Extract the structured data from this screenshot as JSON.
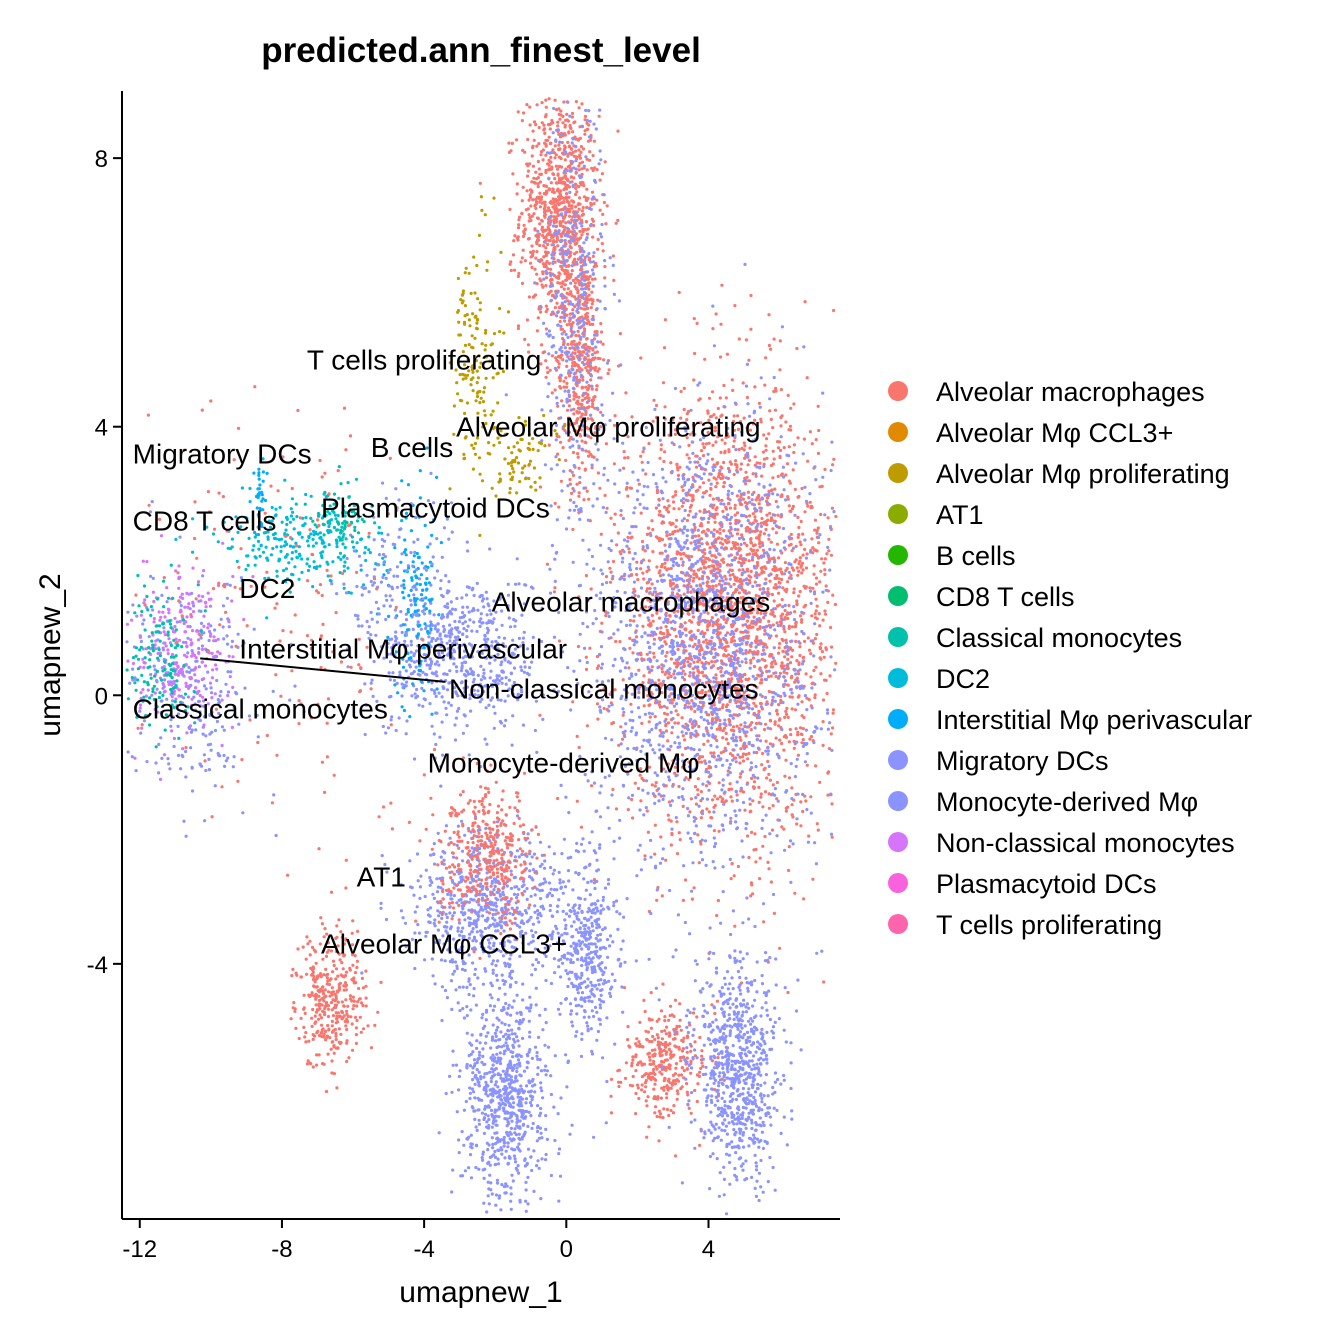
{
  "chart_data": {
    "type": "scatter",
    "title": "predicted.ann_finest_level",
    "xlabel": "umapnew_1",
    "ylabel": "umapnew_2",
    "xlim": [
      -12.5,
      7.7
    ],
    "ylim": [
      -7.8,
      9.0
    ],
    "xticks": [
      -12,
      -8,
      -4,
      0,
      4
    ],
    "yticks": [
      -4,
      0,
      4,
      8
    ],
    "xtick_labels": [
      "-12",
      "-8",
      "-4",
      "0",
      "4"
    ],
    "ytick_labels": [
      "-4",
      "0",
      "4",
      "8"
    ],
    "legend_position": "right",
    "grid": false,
    "legend": [
      {
        "name": "Alveolar macrophages",
        "color": "#F8766D"
      },
      {
        "name": "Alveolar Mφ CCL3+",
        "color": "#E18A00"
      },
      {
        "name": "Alveolar Mφ proliferating",
        "color": "#BE9C00"
      },
      {
        "name": "AT1",
        "color": "#8CAB00"
      },
      {
        "name": "B cells",
        "color": "#24B700"
      },
      {
        "name": "CD8 T cells",
        "color": "#00BE70"
      },
      {
        "name": "Classical monocytes",
        "color": "#00C1AB"
      },
      {
        "name": "DC2",
        "color": "#00BBDA"
      },
      {
        "name": "Interstitial Mφ perivascular",
        "color": "#00ACFC"
      },
      {
        "name": "Migratory DCs",
        "color": "#8B93FF"
      },
      {
        "name": "Monocyte-derived Mφ",
        "color": "#8B93FF"
      },
      {
        "name": "Non-classical monocytes",
        "color": "#D575FE"
      },
      {
        "name": "Plasmacytoid DCs",
        "color": "#F962DD"
      },
      {
        "name": "T cells proliferating",
        "color": "#FF65AC"
      }
    ],
    "cluster_labels": [
      {
        "text": "T cells proliferating",
        "x": -7.3,
        "y": 5.0
      },
      {
        "text": "Alveolar Mφ proliferating",
        "x": -3.1,
        "y": 4.0
      },
      {
        "text": "Migratory DCs",
        "x": -12.2,
        "y": 3.6
      },
      {
        "text": "B cells",
        "x": -5.5,
        "y": 3.7
      },
      {
        "text": "Plasmacytoid DCs",
        "x": -6.9,
        "y": 2.8
      },
      {
        "text": "CD8 T cells",
        "x": -12.2,
        "y": 2.6
      },
      {
        "text": "DC2",
        "x": -9.2,
        "y": 1.6
      },
      {
        "text": "Alveolar macrophages",
        "x": -2.1,
        "y": 1.4
      },
      {
        "text": "Interstitial Mφ perivascular",
        "x": -9.2,
        "y": 0.7
      },
      {
        "text": "Non-classical monocytes",
        "x": -3.3,
        "y": 0.1
      },
      {
        "text": "Classical monocytes",
        "x": -12.2,
        "y": -0.2
      },
      {
        "text": "Monocyte-derived Mφ",
        "x": -3.9,
        "y": -1.0
      },
      {
        "text": "AT1",
        "x": -5.9,
        "y": -2.7
      },
      {
        "text": "Alveolar Mφ CCL3+",
        "x": -6.9,
        "y": -3.7
      }
    ],
    "connector_line": {
      "from": [
        -10.3,
        0.55
      ],
      "to": [
        -3.4,
        0.2
      ]
    },
    "clusters": [
      {
        "color": "#F8766D",
        "cx": -0.2,
        "cy": 7.2,
        "sx": 0.55,
        "sy": 0.9,
        "n": 900
      },
      {
        "color": "#F8766D",
        "cx": 0.4,
        "cy": 5.0,
        "sx": 0.35,
        "sy": 0.9,
        "n": 450
      },
      {
        "color": "#8B93FF",
        "cx": 0.2,
        "cy": 6.0,
        "sx": 0.45,
        "sy": 1.5,
        "n": 350
      },
      {
        "color": "#F8766D",
        "cx": 4.6,
        "cy": 1.2,
        "sx": 1.6,
        "sy": 1.6,
        "n": 2600
      },
      {
        "color": "#8B93FF",
        "cx": 3.8,
        "cy": 0.8,
        "sx": 1.7,
        "sy": 1.7,
        "n": 1500
      },
      {
        "color": "#8B93FF",
        "cx": -2.8,
        "cy": 0.6,
        "sx": 1.0,
        "sy": 0.6,
        "n": 500
      },
      {
        "color": "#8B93FF",
        "cx": -10.6,
        "cy": 0.2,
        "sx": 0.9,
        "sy": 0.8,
        "n": 280
      },
      {
        "color": "#D575FE",
        "cx": -10.8,
        "cy": 0.6,
        "sx": 0.7,
        "sy": 0.6,
        "n": 260
      },
      {
        "color": "#00C1AB",
        "cx": -11.4,
        "cy": 0.6,
        "sx": 0.4,
        "sy": 0.6,
        "n": 130
      },
      {
        "color": "#00BBDA",
        "cx": -7.4,
        "cy": 2.3,
        "sx": 1.1,
        "sy": 0.35,
        "n": 260
      },
      {
        "color": "#00ACFC",
        "cx": -4.2,
        "cy": 1.5,
        "sx": 0.35,
        "sy": 0.8,
        "n": 130
      },
      {
        "color": "#8B93FF",
        "cx": -4.6,
        "cy": 1.2,
        "sx": 0.9,
        "sy": 0.9,
        "n": 220
      },
      {
        "color": "#8B93FF",
        "cx": -2.2,
        "cy": -3.2,
        "sx": 1.1,
        "sy": 0.6,
        "n": 700
      },
      {
        "color": "#F8766D",
        "cx": -2.2,
        "cy": -2.4,
        "sx": 0.7,
        "sy": 0.5,
        "n": 380
      },
      {
        "color": "#F8766D",
        "cx": -6.6,
        "cy": -4.5,
        "sx": 0.5,
        "sy": 0.5,
        "n": 350
      },
      {
        "color": "#8B93FF",
        "cx": -1.7,
        "cy": -6.0,
        "sx": 0.6,
        "sy": 0.8,
        "n": 750
      },
      {
        "color": "#8B93FF",
        "cx": 0.6,
        "cy": -3.8,
        "sx": 0.4,
        "sy": 0.7,
        "n": 380
      },
      {
        "color": "#F8766D",
        "cx": 2.8,
        "cy": -5.5,
        "sx": 0.6,
        "sy": 0.4,
        "n": 320
      },
      {
        "color": "#8B93FF",
        "cx": 4.8,
        "cy": -5.6,
        "sx": 0.6,
        "sy": 0.8,
        "n": 750
      },
      {
        "color": "#BE9C00",
        "cx": -2.6,
        "cy": 5.0,
        "sx": 0.35,
        "sy": 0.9,
        "n": 140
      },
      {
        "color": "#BE9C00",
        "cx": -1.4,
        "cy": 3.6,
        "sx": 0.5,
        "sy": 0.3,
        "n": 80
      },
      {
        "color": "#00C1AB",
        "cx": -6.3,
        "cy": 2.6,
        "sx": 0.4,
        "sy": 0.2,
        "n": 70
      },
      {
        "color": "#00ACFC",
        "cx": -8.6,
        "cy": 3.0,
        "sx": 0.08,
        "sy": 0.3,
        "n": 30
      },
      {
        "color": "#F8766D",
        "cx": -8.0,
        "cy": 1.5,
        "sx": 1.8,
        "sy": 1.6,
        "n": 150
      }
    ]
  }
}
